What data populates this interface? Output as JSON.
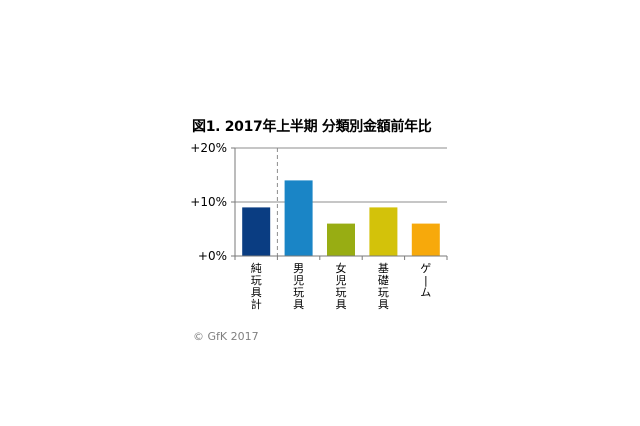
{
  "chart_data": {
    "type": "bar",
    "title": "図1. 2017年上半期 分類別金額前年比",
    "categories": [
      "純玩具計",
      "男児玩具",
      "女児玩具",
      "基礎玩具",
      "ゲーム"
    ],
    "values": [
      9,
      14,
      6,
      9,
      6
    ],
    "colors": [
      "#0a3d82",
      "#1a85c6",
      "#98ad13",
      "#d3c20a",
      "#f7a90b"
    ],
    "ylim": [
      0,
      20
    ],
    "yticks": [
      {
        "value": 0,
        "label": "+0%"
      },
      {
        "value": 10,
        "label": "+10%"
      },
      {
        "value": 20,
        "label": "+20%"
      }
    ],
    "xlabel": "",
    "ylabel": "",
    "grid": true,
    "separator_after_category": 0
  },
  "footer": {
    "copyright": "© GfK 2017"
  }
}
